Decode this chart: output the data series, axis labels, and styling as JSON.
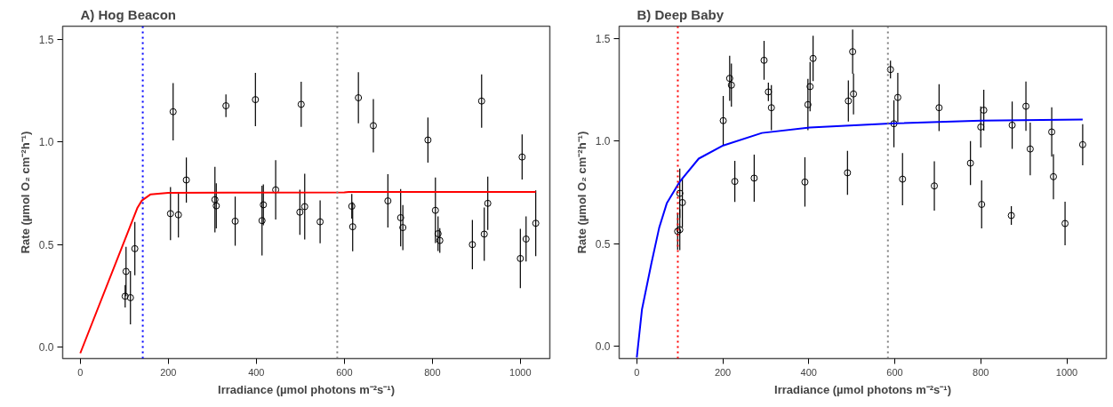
{
  "chart_data": [
    {
      "type": "scatter",
      "title": "A) Hog Beacon",
      "xlabel": "Irradiance (µmol photons m⁻²s⁻¹)",
      "ylabel": "Rate (µmol O₂ cm⁻²h⁻¹)",
      "xlim": [
        -40,
        1067
      ],
      "ylim": [
        -0.056,
        1.565
      ],
      "xticks": [
        0,
        200,
        400,
        600,
        800,
        1000
      ],
      "yticks": [
        {
          "value": 0,
          "label": "0.0"
        },
        {
          "value": 0.5,
          "label": "0.5"
        },
        {
          "value": 1,
          "label": "1.0"
        },
        {
          "value": 1.5,
          "label": "1.5"
        }
      ],
      "grid": false,
      "series": [
        {
          "type": "scatter",
          "marker": "circle",
          "color": "#000000",
          "x": [
            102,
            104,
            114,
            124,
            205,
            211,
            223,
            241,
            306,
            309,
            331,
            352,
            398,
            413,
            416,
            444,
            499,
            502,
            510,
            545,
            617,
            619,
            632,
            666,
            699,
            728,
            733,
            790,
            807,
            813,
            817,
            891,
            912,
            918,
            926,
            1000,
            1004,
            1013,
            1035
          ],
          "values": [
            0.248,
            0.369,
            0.241,
            0.48,
            0.651,
            1.148,
            0.645,
            0.815,
            0.719,
            0.689,
            1.177,
            0.614,
            1.207,
            0.617,
            0.694,
            0.767,
            0.658,
            1.184,
            0.685,
            0.611,
            0.687,
            0.587,
            1.216,
            1.08,
            0.713,
            0.631,
            0.583,
            1.01,
            0.667,
            0.553,
            0.52,
            0.5,
            1.2,
            0.551,
            0.701,
            0.432,
            0.927,
            0.527,
            0.604
          ],
          "errors": [
            0.055,
            0.12,
            0.13,
            0.13,
            0.13,
            0.14,
            0.11,
            0.11,
            0.16,
            0.11,
            0.055,
            0.12,
            0.13,
            0.17,
            0.1,
            0.145,
            0.11,
            0.11,
            0.16,
            0.105,
            0.06,
            0.12,
            0.125,
            0.13,
            0.13,
            0.14,
            0.11,
            0.11,
            0.16,
            0.085,
            0.06,
            0.12,
            0.13,
            0.13,
            0.13,
            0.145,
            0.11,
            0.11,
            0.16
          ]
        },
        {
          "type": "line",
          "color": "#ff0000",
          "x": [
            0,
            130,
            140,
            160,
            200,
            600,
            610,
            1035
          ],
          "values": [
            -0.03,
            0.68,
            0.715,
            0.745,
            0.752,
            0.755,
            0.757,
            0.757
          ]
        }
      ],
      "ref_lines": [
        {
          "axis": "x",
          "value": 142,
          "color": "#0000ff",
          "line_style": "dotted"
        },
        {
          "axis": "x",
          "value": 584,
          "color": "#808080",
          "line_style": "dotted"
        }
      ]
    },
    {
      "type": "scatter",
      "title": "B) Deep Baby",
      "xlabel": "Irradiance (µmol photons m⁻²s⁻¹)",
      "ylabel": "Rate (µmol O₂ cm⁻²h⁻¹)",
      "xlim": [
        -41,
        1092
      ],
      "ylim": [
        -0.059,
        1.56
      ],
      "xticks": [
        0,
        200,
        400,
        600,
        800,
        1000
      ],
      "yticks": [
        {
          "value": 0,
          "label": "0.0"
        },
        {
          "value": 0.5,
          "label": "0.5"
        },
        {
          "value": 1,
          "label": "1.0"
        },
        {
          "value": 1.5,
          "label": "1.5"
        }
      ],
      "grid": false,
      "series": [
        {
          "type": "scatter",
          "marker": "circle",
          "color": "#000000",
          "x": [
            95,
            100,
            100,
            106,
            201,
            216,
            220,
            228,
            273,
            296,
            306,
            313,
            391,
            398,
            403,
            410,
            490,
            492,
            502,
            504,
            590,
            598,
            607,
            618,
            692,
            703,
            776,
            800,
            802,
            807,
            871,
            873,
            905,
            915,
            965,
            969,
            996,
            1037
          ],
          "values": [
            0.561,
            0.569,
            0.746,
            0.701,
            1.1,
            1.306,
            1.273,
            0.804,
            0.82,
            1.394,
            1.24,
            1.163,
            0.801,
            1.178,
            1.266,
            1.403,
            0.846,
            1.196,
            1.436,
            1.23,
            1.349,
            1.085,
            1.213,
            0.815,
            0.782,
            1.163,
            0.893,
            1.069,
            0.692,
            1.151,
            0.638,
            1.078,
            1.17,
            0.962,
            1.045,
            0.827,
            0.599,
            0.983
          ],
          "errors": [
            0.09,
            0.1,
            0.12,
            0.12,
            0.12,
            0.11,
            0.105,
            0.1,
            0.115,
            0.095,
            0.045,
            0.11,
            0.12,
            0.125,
            0.12,
            0.11,
            0.107,
            0.1,
            0.108,
            0.1,
            0.043,
            0.115,
            0.12,
            0.127,
            0.12,
            0.114,
            0.107,
            0.1,
            0.117,
            0.1,
            0.045,
            0.115,
            0.12,
            0.128,
            0.12,
            0.11,
            0.106,
            0.1
          ]
        },
        {
          "type": "line",
          "color": "#0000ff",
          "x": [
            0,
            12,
            34,
            52,
            70,
            100,
            144,
            201,
            291,
            402,
            599,
            800,
            1037
          ],
          "values": [
            -0.054,
            0.18,
            0.405,
            0.578,
            0.699,
            0.803,
            0.915,
            0.979,
            1.04,
            1.066,
            1.087,
            1.1,
            1.106
          ]
        }
      ],
      "ref_lines": [
        {
          "axis": "x",
          "value": 95.4,
          "color": "#ff0000",
          "line_style": "dotted"
        },
        {
          "axis": "x",
          "value": 584,
          "color": "#808080",
          "line_style": "dotted"
        }
      ]
    }
  ]
}
